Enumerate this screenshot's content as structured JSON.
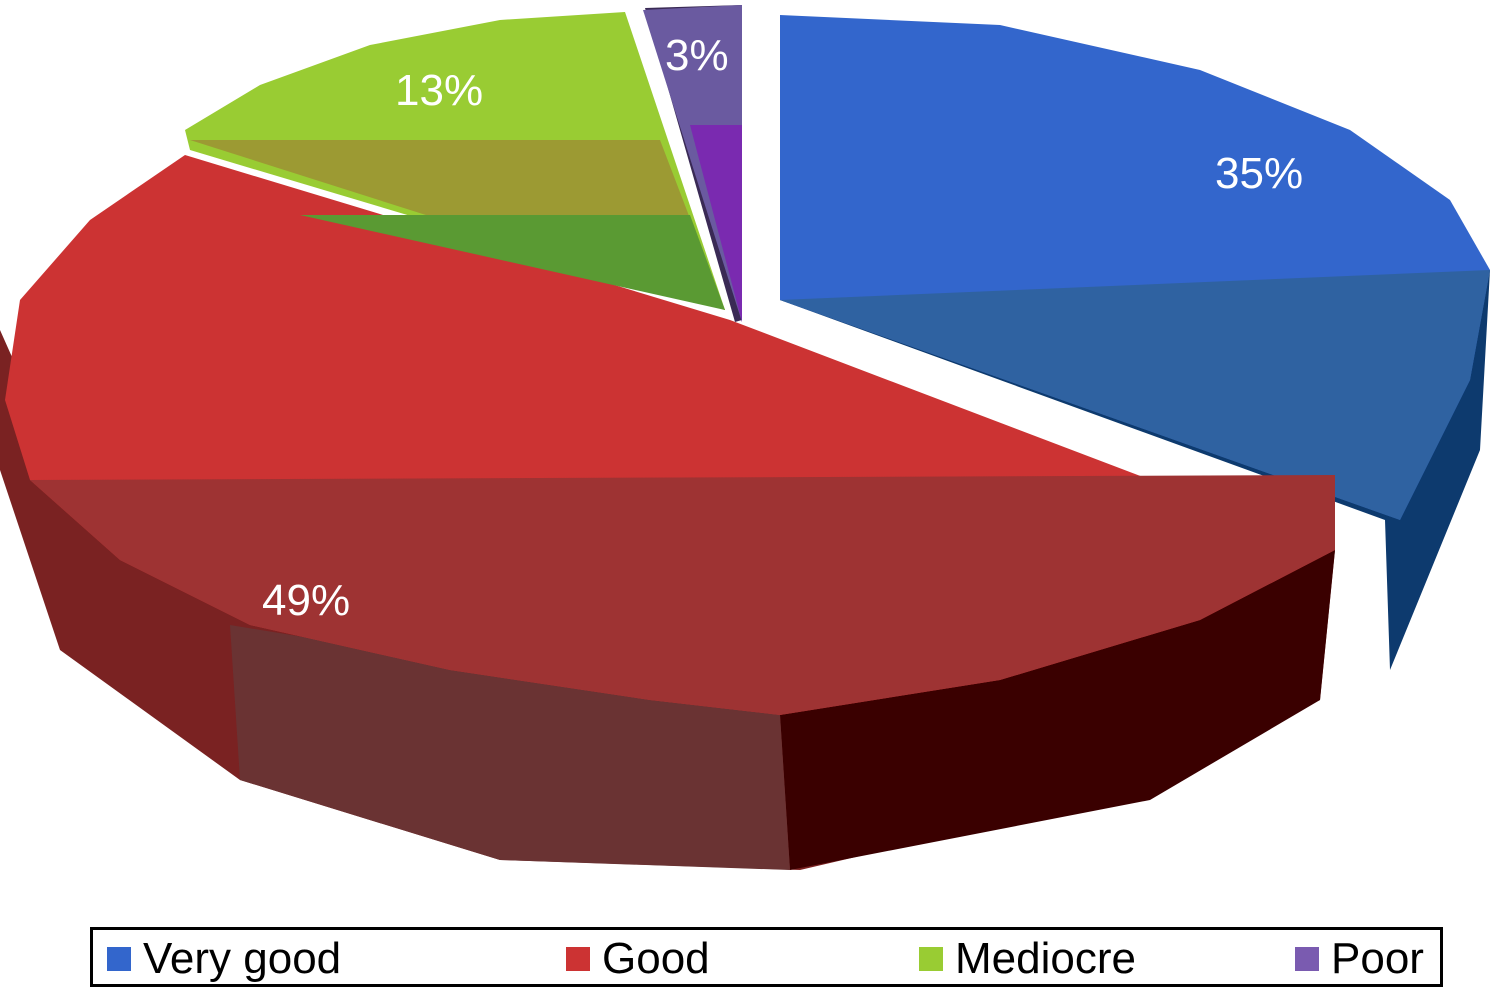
{
  "chart_data": {
    "type": "pie",
    "title": "",
    "labels": [
      "Very good",
      "Good",
      "Mediocre",
      "Poor"
    ],
    "values": [
      35,
      49,
      13,
      3
    ],
    "value_labels": [
      "35%",
      "49%",
      "13%",
      "3%"
    ],
    "colors": [
      "#3366cc",
      "#cc3333",
      "#99cc33",
      "#7a5bb0"
    ],
    "style": "3d-exploded",
    "legend_position": "bottom"
  },
  "legend": {
    "items": [
      {
        "label": "Very good",
        "color": "#3366cc"
      },
      {
        "label": "Good",
        "color": "#cc3333"
      },
      {
        "label": "Mediocre",
        "color": "#99cc33"
      },
      {
        "label": "Poor",
        "color": "#7a5bb0"
      }
    ]
  }
}
